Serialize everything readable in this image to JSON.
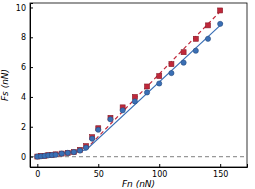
{
  "chart_data": {
    "type": "scatter",
    "x_label": "Fn (nN)",
    "y_label": "Fs (nN)",
    "xlim": [
      -6,
      172
    ],
    "ylim": [
      -0.7,
      10.3
    ],
    "xticks": [
      0,
      50,
      100,
      150
    ],
    "yticks": [
      0,
      2,
      4,
      6,
      8,
      10
    ],
    "grid": false,
    "series": [
      {
        "type": "line",
        "color": "#999999",
        "line_style": "dashed",
        "x": [
          -6,
          172
        ],
        "values": [
          0,
          0
        ]
      },
      {
        "type": "line",
        "color": "#c0283a",
        "line_style": "dashed",
        "x": [
          0,
          40,
          152
        ],
        "values": [
          0,
          0.5,
          9.9
        ]
      },
      {
        "type": "line",
        "color": "#3a6fb5",
        "line_style": "solid",
        "x": [
          0,
          40,
          152
        ],
        "values": [
          0,
          0.45,
          8.95
        ]
      },
      {
        "type": "scatter",
        "marker": "square",
        "color": "#c0283a",
        "x": [
          0,
          3,
          6,
          9,
          12,
          15,
          20,
          25,
          30,
          35,
          40,
          45,
          50,
          60,
          70,
          80,
          90,
          100,
          110,
          120,
          130,
          140,
          150
        ],
        "values": [
          0.0,
          0.05,
          0.05,
          0.1,
          0.1,
          0.15,
          0.2,
          0.25,
          0.3,
          0.45,
          0.7,
          1.3,
          1.9,
          2.6,
          3.3,
          4.0,
          4.7,
          5.4,
          6.2,
          7.0,
          7.9,
          8.8,
          9.8
        ]
      },
      {
        "type": "scatter",
        "marker": "circle",
        "color": "#3a6fb5",
        "x": [
          0,
          3,
          6,
          9,
          12,
          15,
          20,
          25,
          30,
          35,
          40,
          45,
          50,
          60,
          70,
          80,
          90,
          100,
          110,
          120,
          130,
          140,
          150
        ],
        "values": [
          0.0,
          0.02,
          0.05,
          0.08,
          0.1,
          0.12,
          0.2,
          0.25,
          0.3,
          0.4,
          0.6,
          1.2,
          1.8,
          2.5,
          3.1,
          3.7,
          4.3,
          4.9,
          5.6,
          6.3,
          7.1,
          7.9,
          8.9
        ]
      }
    ]
  }
}
